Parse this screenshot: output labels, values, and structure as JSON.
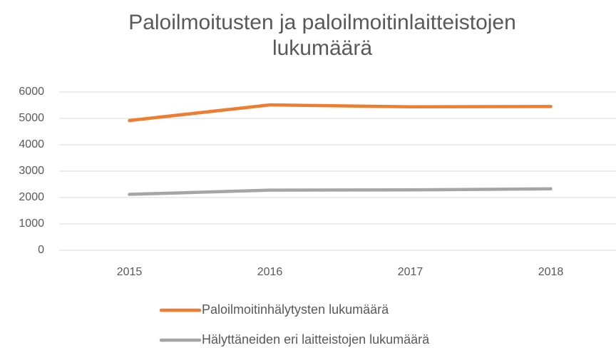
{
  "chart_data": {
    "type": "line",
    "title": "Paloilmoitusten ja paloilmoitinlaitteistojen lukumäärä",
    "categories": [
      "2015",
      "2016",
      "2017",
      "2018"
    ],
    "series": [
      {
        "name": "Paloilmoitinhälytysten lukumäärä",
        "color": "#ed7d31",
        "values": [
          4920,
          5510,
          5440,
          5450
        ]
      },
      {
        "name": "Hälyttäneiden eri laitteistojen lukumäärä",
        "color": "#a5a5a5",
        "values": [
          2120,
          2280,
          2290,
          2330
        ]
      }
    ],
    "ylim": [
      0,
      6000
    ],
    "yticks": [
      0,
      1000,
      2000,
      3000,
      4000,
      5000,
      6000
    ],
    "grid": true,
    "legend": "bottom"
  }
}
